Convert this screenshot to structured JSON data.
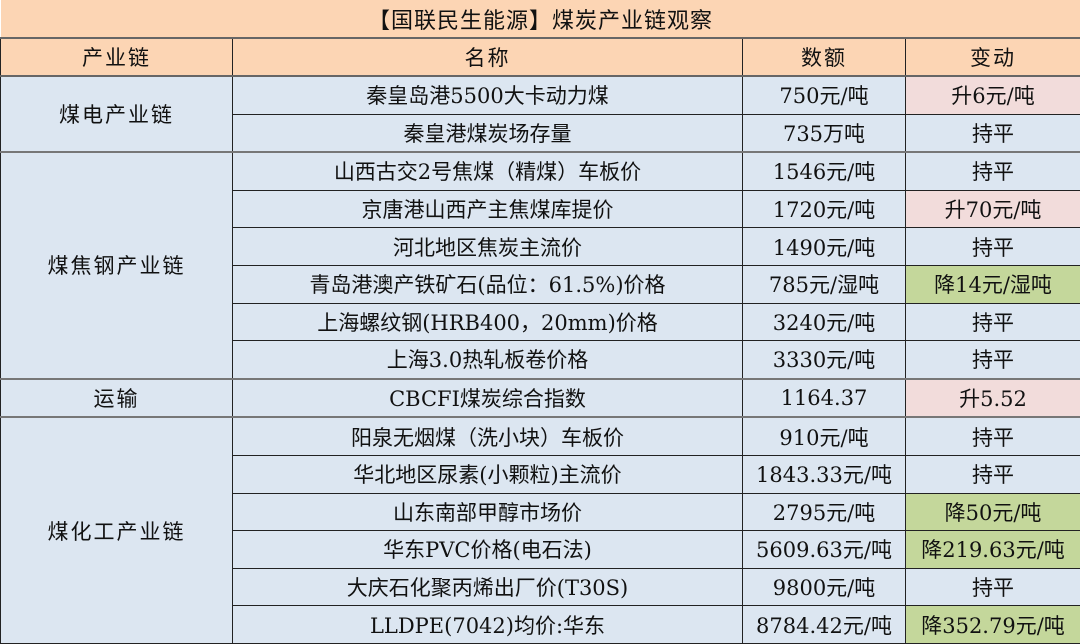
{
  "title": "【国联民生能源】煤炭产业链观察",
  "headers": [
    "产业链",
    "名称",
    "数额",
    "变动"
  ],
  "colors": {
    "header_bg": "#FCD5B4",
    "body_bg": "#DCE6F1",
    "rise_bg": "#F2DCDB",
    "fall_bg": "#C4D79B"
  },
  "groups": [
    {
      "name": "煤电产业链",
      "rows": [
        {
          "name": "秦皇岛港5500大卡动力煤",
          "value": "750元/吨",
          "change": "升6元/吨",
          "trend": "up"
        },
        {
          "name": "秦皇港煤炭场存量",
          "value": "735万吨",
          "change": "持平",
          "trend": "flat"
        }
      ]
    },
    {
      "name": "煤焦钢产业链",
      "rows": [
        {
          "name": "山西古交2号焦煤（精煤）车板价",
          "value": "1546元/吨",
          "change": "持平",
          "trend": "flat"
        },
        {
          "name": "京唐港山西产主焦煤库提价",
          "value": "1720元/吨",
          "change": "升70元/吨",
          "trend": "up"
        },
        {
          "name": "河北地区焦炭主流价",
          "value": "1490元/吨",
          "change": "持平",
          "trend": "flat"
        },
        {
          "name": "青岛港澳产铁矿石(品位：61.5%)价格",
          "value": "785元/湿吨",
          "change": "降14元/湿吨",
          "trend": "down"
        },
        {
          "name": "上海螺纹钢(HRB400，20mm)价格",
          "value": "3240元/吨",
          "change": "持平",
          "trend": "flat"
        },
        {
          "name": "上海3.0热轧板卷价格",
          "value": "3330元/吨",
          "change": "持平",
          "trend": "flat"
        }
      ]
    },
    {
      "name": "运输",
      "rows": [
        {
          "name": "CBCFI煤炭综合指数",
          "value": "1164.37",
          "change": "升5.52",
          "trend": "up"
        }
      ]
    },
    {
      "name": "煤化工产业链",
      "rows": [
        {
          "name": "阳泉无烟煤（洗小块）车板价",
          "value": "910元/吨",
          "change": "持平",
          "trend": "flat"
        },
        {
          "name": "华北地区尿素(小颗粒)主流价",
          "value": "1843.33元/吨",
          "change": "持平",
          "trend": "flat"
        },
        {
          "name": "山东南部甲醇市场价",
          "value": "2795元/吨",
          "change": "降50元/吨",
          "trend": "down"
        },
        {
          "name": "华东PVC价格(电石法)",
          "value": "5609.63元/吨",
          "change": "降219.63元/吨",
          "trend": "down"
        },
        {
          "name": "大庆石化聚丙烯出厂价(T30S)",
          "value": "9800元/吨",
          "change": "持平",
          "trend": "flat"
        },
        {
          "name": "LLDPE(7042)均价:华东",
          "value": "8784.42元/吨",
          "change": "降352.79元/吨",
          "trend": "down"
        }
      ]
    }
  ]
}
